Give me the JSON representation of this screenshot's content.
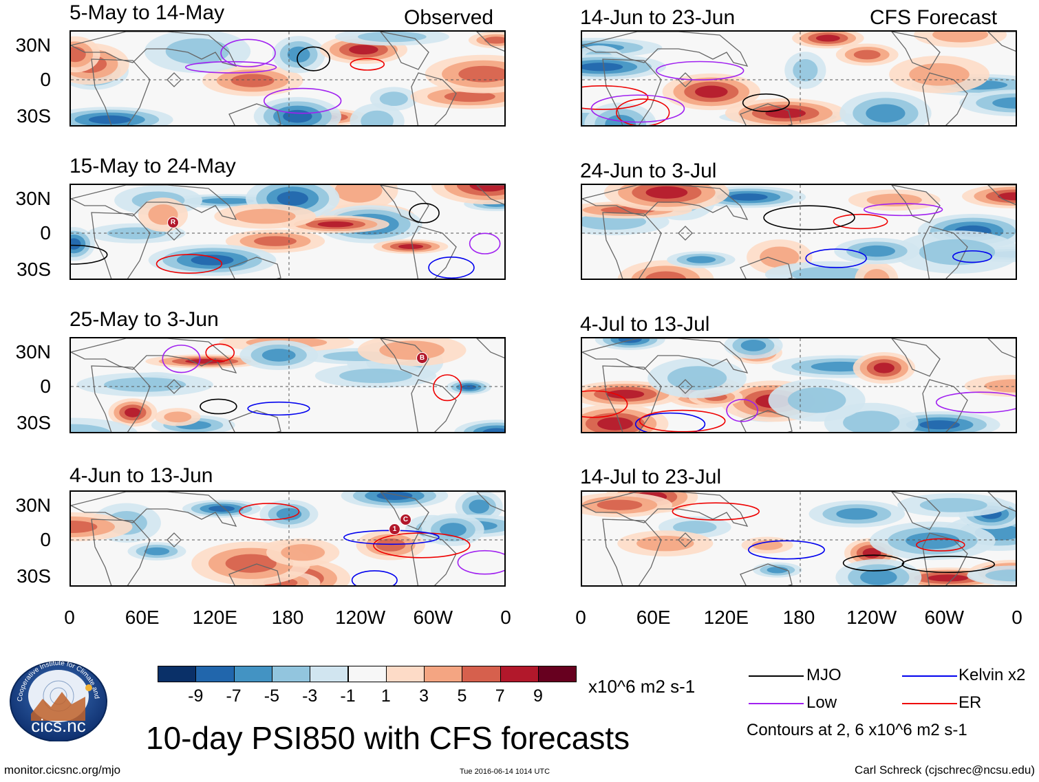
{
  "header": {
    "observed_label": "Observed",
    "forecast_label": "CFS Forecast"
  },
  "axes": {
    "y_labels": [
      "30N",
      "0",
      "30S"
    ],
    "x_labels": [
      "0",
      "60E",
      "120E",
      "180",
      "120W",
      "60W",
      "0"
    ]
  },
  "panels": {
    "observed": [
      {
        "title": "5-May to 14-May"
      },
      {
        "title": "15-May to 24-May",
        "markers": [
          "R"
        ]
      },
      {
        "title": "25-May to 3-Jun",
        "markers": [
          "B"
        ]
      },
      {
        "title": "4-Jun to 13-Jun",
        "markers": [
          "1",
          "C"
        ]
      }
    ],
    "forecast": [
      {
        "title": "14-Jun to 23-Jun"
      },
      {
        "title": "24-Jun to 3-Jul"
      },
      {
        "title": "4-Jul to 13-Jul"
      },
      {
        "title": "14-Jul to 23-Jul"
      }
    ]
  },
  "colorbar": {
    "labels": [
      "-9",
      "-7",
      "-5",
      "-3",
      "-1",
      "1",
      "3",
      "5",
      "7",
      "9"
    ],
    "colors": [
      "#0a3068",
      "#2166ac",
      "#4393c3",
      "#92c5de",
      "#d1e5f0",
      "#f7f7f7",
      "#fddbc7",
      "#f4a582",
      "#d6604d",
      "#b2182b",
      "#67001f"
    ],
    "units": "x10^6 m2 s-1"
  },
  "legend": {
    "items": [
      {
        "label": "MJO",
        "color": "#000000"
      },
      {
        "label": "Kelvin x2",
        "color": "#0000ee"
      },
      {
        "label": "Low",
        "color": "#a020f0"
      },
      {
        "label": "ER",
        "color": "#ee0000"
      }
    ],
    "contours_note": "Contours at 2, 6 x10^6 m2 s-1"
  },
  "main_title": "10-day PSI850 with CFS forecasts",
  "logo_text": "cics.nc",
  "logo_ring_text": "Cooperative Institute for Climate and Satellites",
  "footer": {
    "url": "monitor.cicsnc.org/mjo",
    "timestamp": "Tue 2016-06-14 1014 UTC",
    "author": "Carl Schreck (cjschrec@ncsu.edu)"
  }
}
